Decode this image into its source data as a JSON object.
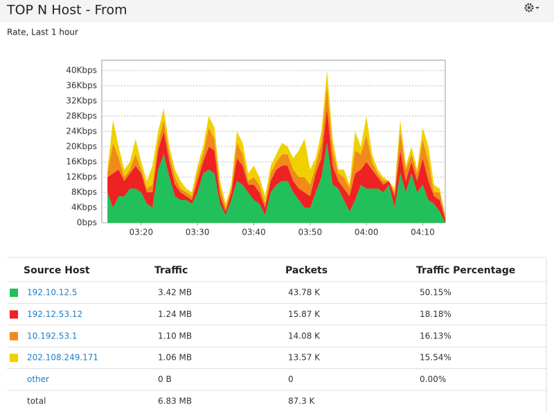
{
  "header": {
    "title": "TOP N Host - From",
    "subtitle": "Rate, Last 1 hour"
  },
  "chart_data": {
    "type": "stacked_area",
    "x": [
      "03:14",
      "03:15",
      "03:16",
      "03:17",
      "03:18",
      "03:19",
      "03:20",
      "03:21",
      "03:22",
      "03:23",
      "03:24",
      "03:25",
      "03:26",
      "03:27",
      "03:28",
      "03:29",
      "03:30",
      "03:31",
      "03:32",
      "03:33",
      "03:34",
      "03:35",
      "03:36",
      "03:37",
      "03:38",
      "03:39",
      "03:40",
      "03:41",
      "03:42",
      "03:43",
      "03:44",
      "03:45",
      "03:46",
      "03:47",
      "03:48",
      "03:49",
      "03:50",
      "03:51",
      "03:52",
      "03:53",
      "03:54",
      "03:55",
      "03:56",
      "03:57",
      "03:58",
      "03:59",
      "04:00",
      "04:01",
      "04:02",
      "04:03",
      "04:04",
      "04:05",
      "04:06",
      "04:07",
      "04:08",
      "04:09",
      "04:10",
      "04:11",
      "04:12",
      "04:13",
      "04:14"
    ],
    "series": [
      {
        "name": "192.10.12.5",
        "color": "#22c05a",
        "values": [
          8,
          4,
          7,
          7,
          9,
          9,
          8,
          5,
          4,
          14,
          18,
          12,
          7,
          6,
          6,
          5,
          8,
          13,
          14,
          13,
          5,
          2,
          6,
          11,
          10,
          8,
          6,
          5,
          2,
          8,
          10,
          11,
          11,
          8,
          6,
          4,
          4,
          8,
          12,
          21,
          10,
          9,
          6,
          3,
          6,
          10,
          9,
          9,
          9,
          8,
          10,
          4,
          13,
          8,
          13,
          8,
          10,
          6,
          5,
          3,
          0
        ]
      },
      {
        "name": "192.12.53.12",
        "color": "#ee2222",
        "values": [
          4,
          9,
          7,
          4,
          4,
          6,
          5,
          3,
          4,
          5,
          6,
          4,
          3,
          2,
          1,
          1,
          3,
          3,
          6,
          6,
          2,
          1,
          2,
          6,
          5,
          2,
          4,
          3,
          2,
          3,
          4,
          4,
          4,
          3,
          3,
          4,
          3,
          5,
          5,
          9,
          5,
          2,
          3,
          4,
          7,
          4,
          7,
          5,
          3,
          2,
          1,
          3,
          6,
          3,
          3,
          3,
          7,
          5,
          2,
          3,
          1
        ]
      },
      {
        "name": "10.192.53.1",
        "color": "#f08a1a",
        "values": [
          1,
          8,
          3,
          1,
          1,
          3,
          1,
          1,
          2,
          2,
          3,
          2,
          2,
          1,
          1,
          1,
          2,
          2,
          5,
          3,
          2,
          1,
          1,
          4,
          3,
          1,
          2,
          2,
          1,
          2,
          2,
          3,
          3,
          3,
          3,
          4,
          3,
          2,
          4,
          6,
          4,
          2,
          3,
          2,
          6,
          4,
          7,
          2,
          1,
          1,
          0,
          1,
          5,
          3,
          2,
          2,
          5,
          5,
          1,
          2,
          0.5
        ]
      },
      {
        "name": "202.108.249.171",
        "color": "#f0d000",
        "values": [
          1,
          6,
          3,
          2,
          2,
          4,
          2,
          2,
          5,
          3,
          3,
          2,
          2,
          2,
          1,
          1,
          2,
          2,
          3,
          3,
          2,
          1,
          1,
          3,
          3,
          2,
          3,
          2,
          2,
          2,
          2,
          3,
          2,
          3,
          7,
          10,
          4,
          2,
          3,
          4,
          3,
          1,
          2,
          1,
          5,
          2,
          5,
          2,
          1,
          1,
          0,
          1,
          3,
          1,
          2,
          1,
          3,
          4,
          2,
          1,
          0.5
        ]
      }
    ],
    "xlim": [
      "03:13",
      "04:14"
    ],
    "xticks": [
      "03:20",
      "03:30",
      "03:40",
      "03:50",
      "04:00",
      "04:10"
    ],
    "ylim": [
      0,
      42.7
    ],
    "yticks": [
      {
        "value": 0,
        "label": "0bps"
      },
      {
        "value": 4,
        "label": "4Kbps"
      },
      {
        "value": 8,
        "label": "8Kbps"
      },
      {
        "value": 12,
        "label": "12Kbps"
      },
      {
        "value": 16,
        "label": "16Kbps"
      },
      {
        "value": 20,
        "label": "20Kbps"
      },
      {
        "value": 24,
        "label": "24Kbps"
      },
      {
        "value": 28,
        "label": "28Kbps"
      },
      {
        "value": 32,
        "label": "32Kbps"
      },
      {
        "value": 36,
        "label": "36Kbps"
      },
      {
        "value": 40,
        "label": "40Kbps"
      }
    ],
    "grid": true
  },
  "table": {
    "columns": [
      "Source Host",
      "Traffic",
      "Packets",
      "Traffic Percentage"
    ],
    "series_rows": [
      [
        "3.42 MB",
        "43.78 K",
        "50.15%"
      ],
      [
        "1.24 MB",
        "15.87 K",
        "18.18%"
      ],
      [
        "1.10 MB",
        "14.08 K",
        "16.13%"
      ],
      [
        "1.06 MB",
        "13.57 K",
        "15.54%"
      ]
    ],
    "other_row": [
      "other",
      "0 B",
      "0",
      "0.00%"
    ],
    "total_row": [
      "total",
      "6.83 MB",
      "87.3 K"
    ]
  }
}
